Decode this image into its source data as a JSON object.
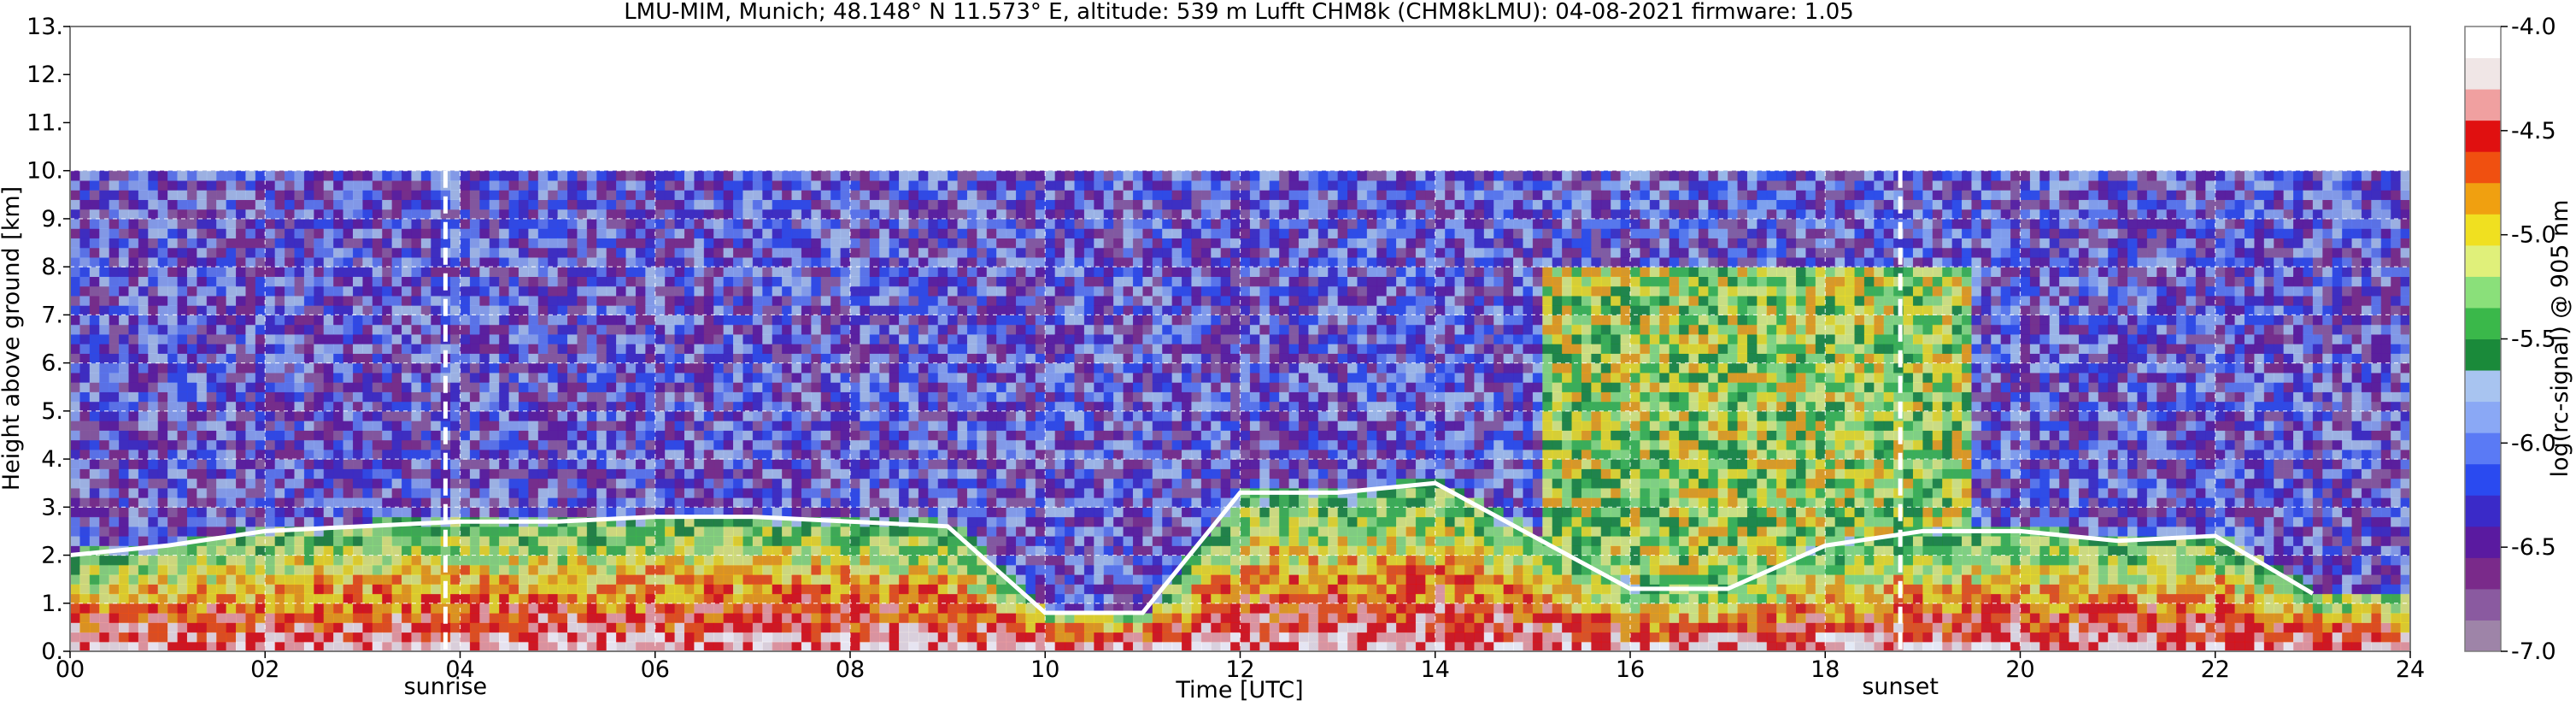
{
  "chart_data": {
    "type": "heatmap",
    "title": "LMU-MIM, Munich; 48.148° N 11.573° E, altitude: 539 m    Lufft CHM8k (CHM8kLMU): 04-08-2021    firmware: 1.05",
    "xlabel": "Time [UTC]",
    "ylabel": "Height above ground [km]",
    "colorbar_label": "log(rc-signal) @ 905 nm",
    "xlim": [
      0,
      24
    ],
    "ylim": [
      0,
      13
    ],
    "x_ticks": [
      0,
      2,
      4,
      6,
      8,
      10,
      12,
      14,
      16,
      18,
      20,
      22,
      24
    ],
    "x_tick_labels": [
      "00",
      "02",
      "04",
      "06",
      "08",
      "10",
      "12",
      "14",
      "16",
      "18",
      "20",
      "22",
      "24"
    ],
    "y_ticks": [
      0,
      1,
      2,
      3,
      4,
      5,
      6,
      7,
      8,
      9,
      10,
      11,
      12,
      13
    ],
    "y_tick_labels": [
      "0.",
      "1.",
      "2.",
      "3.",
      "4.",
      "5.",
      "6.",
      "7.",
      "8.",
      "9.",
      "10.",
      "11.",
      "12.",
      "13."
    ],
    "colorbar_range": [
      -7.0,
      -4.0
    ],
    "colorbar_ticks": [
      -7.0,
      -6.5,
      -6.0,
      -5.5,
      -5.0,
      -4.5,
      -4.0
    ],
    "colorbar_tick_labels": [
      "-7.0",
      "-6.5",
      "-6.0",
      "-5.5",
      "-5.0",
      "-4.5",
      "-4.0"
    ],
    "grid": true,
    "data_top_km": 10,
    "markers": [
      {
        "label": "sunrise",
        "time": 3.85
      },
      {
        "label": "sunset",
        "time": 18.77
      }
    ],
    "cloud_base_heights": [
      {
        "time": 0.0,
        "height_km": 2.0
      },
      {
        "time": 1.0,
        "height_km": 2.2
      },
      {
        "time": 2.0,
        "height_km": 2.5
      },
      {
        "time": 3.0,
        "height_km": 2.6
      },
      {
        "time": 4.0,
        "height_km": 2.7
      },
      {
        "time": 5.0,
        "height_km": 2.7
      },
      {
        "time": 6.0,
        "height_km": 2.8
      },
      {
        "time": 7.0,
        "height_km": 2.8
      },
      {
        "time": 8.0,
        "height_km": 2.7
      },
      {
        "time": 9.0,
        "height_km": 2.6
      },
      {
        "time": 10.0,
        "height_km": 0.8
      },
      {
        "time": 11.0,
        "height_km": 0.8
      },
      {
        "time": 12.0,
        "height_km": 3.3
      },
      {
        "time": 13.0,
        "height_km": 3.3
      },
      {
        "time": 14.0,
        "height_km": 3.5
      },
      {
        "time": 16.0,
        "height_km": 1.3
      },
      {
        "time": 17.0,
        "height_km": 1.3
      },
      {
        "time": 18.0,
        "height_km": 2.2
      },
      {
        "time": 19.0,
        "height_km": 2.5
      },
      {
        "time": 20.0,
        "height_km": 2.5
      },
      {
        "time": 21.0,
        "height_km": 2.3
      },
      {
        "time": 22.0,
        "height_km": 2.4
      },
      {
        "time": 23.0,
        "height_km": 1.2
      }
    ],
    "colormap": [
      "#9e84a8",
      "#8a5aa0",
      "#7a2a8a",
      "#5a1aa0",
      "#3a2ac8",
      "#2a4af0",
      "#5a7af5",
      "#8aa8f5",
      "#a8c4f0",
      "#1a8a3a",
      "#3ab84a",
      "#8ae07a",
      "#e0f07a",
      "#f0e020",
      "#f0a010",
      "#f05010",
      "#e01010",
      "#f0a0a0",
      "#f0e6e6",
      "#ffffff"
    ]
  }
}
